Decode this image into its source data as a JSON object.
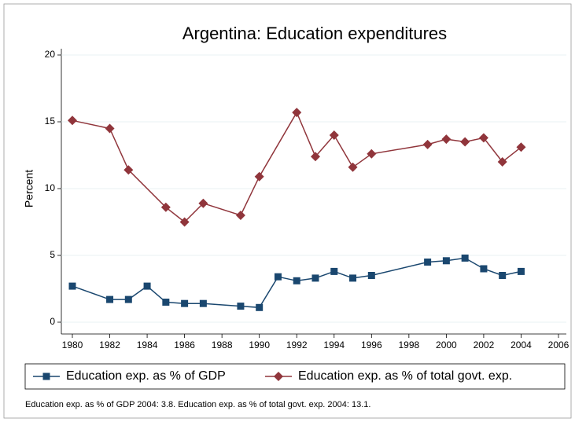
{
  "chart_data": {
    "type": "line",
    "title": "Argentina: Education expenditures",
    "y_label": "Percent",
    "note": "Education exp. as % of GDP 2004: 3.8. Education exp. as % of total govt. exp. 2004: 13.1.",
    "series": [
      {
        "name": "Education exp. as % of GDP",
        "color": "#1a476f",
        "marker": "square",
        "x": [
          1980,
          1982,
          1983,
          1984,
          1985,
          1986,
          1987,
          1989,
          1990,
          1991,
          1992,
          1993,
          1994,
          1995,
          1996,
          1999,
          2000,
          2001,
          2002,
          2003,
          2004
        ],
        "values": [
          2.7,
          1.7,
          1.7,
          2.7,
          1.5,
          1.4,
          1.4,
          1.2,
          1.1,
          3.4,
          3.1,
          3.3,
          3.8,
          3.3,
          3.5,
          4.5,
          4.6,
          4.8,
          4.0,
          3.5,
          3.8
        ]
      },
      {
        "name": "Education exp. as % of total govt. exp.",
        "color": "#90353b",
        "marker": "diamond",
        "x": [
          1980,
          1982,
          1983,
          1985,
          1986,
          1987,
          1989,
          1990,
          1992,
          1993,
          1994,
          1995,
          1996,
          1999,
          2000,
          2001,
          2002,
          2003,
          2004
        ],
        "values": [
          15.1,
          14.5,
          11.4,
          8.6,
          7.5,
          8.9,
          8.0,
          10.9,
          15.7,
          12.4,
          14.0,
          11.6,
          12.6,
          13.3,
          13.7,
          13.5,
          13.8,
          12.0,
          13.1
        ]
      }
    ],
    "xlim": [
      1980,
      2006
    ],
    "xticks": [
      1980,
      1982,
      1984,
      1986,
      1988,
      1990,
      1992,
      1994,
      1996,
      1998,
      2000,
      2002,
      2004,
      2006
    ],
    "ylim": [
      0,
      20
    ],
    "yticks": [
      0,
      5,
      10,
      15,
      20
    ],
    "grid": true,
    "legend": "bottom"
  }
}
